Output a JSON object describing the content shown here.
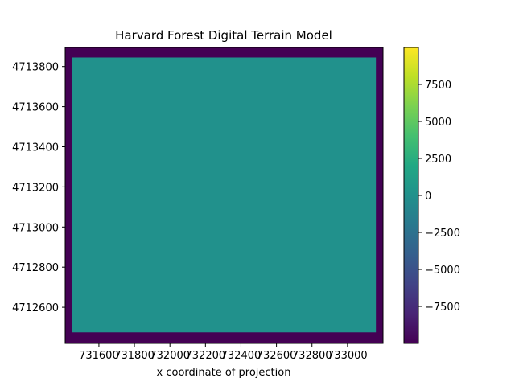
{
  "chart_data": {
    "type": "heatmap",
    "title": "Harvard Forest Digital Terrain Model",
    "xlabel": "x coordinate of projection",
    "ylabel": "",
    "x_ticks": [
      {
        "value": 731600,
        "label": "731600"
      },
      {
        "value": 731800,
        "label": "731800"
      },
      {
        "value": 732000,
        "label": "732000"
      },
      {
        "value": 732200,
        "label": "732200"
      },
      {
        "value": 732400,
        "label": "732400"
      },
      {
        "value": 732600,
        "label": "732600"
      },
      {
        "value": 732800,
        "label": "732800"
      },
      {
        "value": 733000,
        "label": "733000"
      }
    ],
    "y_ticks": [
      {
        "value": 4713800,
        "label": "4713800"
      },
      {
        "value": 4713600,
        "label": "4713600"
      },
      {
        "value": 4713400,
        "label": "4713400"
      },
      {
        "value": 4713200,
        "label": "4713200"
      },
      {
        "value": 4713000,
        "label": "4713000"
      },
      {
        "value": 4712800,
        "label": "4712800"
      },
      {
        "value": 4712600,
        "label": "4712600"
      }
    ],
    "xlim": [
      731410,
      733200
    ],
    "ylim": [
      4712420,
      4713895
    ],
    "valid_region": {
      "x": [
        731450,
        733160
      ],
      "y": [
        4712475,
        4713845
      ]
    },
    "valid_value": 350,
    "nodata_value": -9999,
    "colorbar": {
      "colormap": "viridis",
      "vmin": -9999,
      "vmax": 9999,
      "ticks": [
        {
          "value": 7500,
          "label": "7500"
        },
        {
          "value": 5000,
          "label": "5000"
        },
        {
          "value": 2500,
          "label": "2500"
        },
        {
          "value": 0,
          "label": "0"
        },
        {
          "value": -2500,
          "label": "−2500"
        },
        {
          "value": -5000,
          "label": "−5000"
        },
        {
          "value": -7500,
          "label": "−7500"
        }
      ]
    },
    "colors": {
      "nodata": "#440154",
      "valid": "#21918c"
    }
  }
}
